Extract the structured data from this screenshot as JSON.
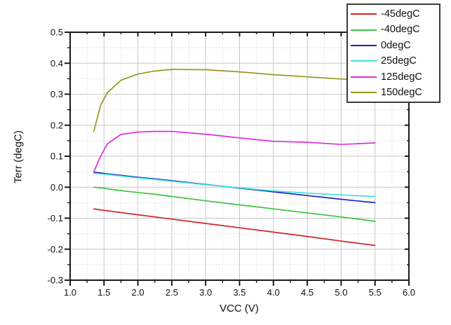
{
  "chart_data": {
    "type": "line",
    "title": "",
    "xlabel": "VCC (V)",
    "ylabel": "Terr (degC)",
    "xlim": [
      1.0,
      6.0
    ],
    "ylim": [
      -0.3,
      0.5
    ],
    "x_tick_labels": [
      "1.0",
      "1.5",
      "2.0",
      "2.5",
      "3.0",
      "3.5",
      "4.0",
      "4.5",
      "5.0",
      "5.5",
      "6.0"
    ],
    "y_tick_labels": [
      "-0.3",
      "-0.2",
      "-0.1",
      "0.0",
      "0.1",
      "0.2",
      "0.3",
      "0.4",
      "0.5"
    ],
    "x_tick_values": [
      1.0,
      1.5,
      2.0,
      2.5,
      3.0,
      3.5,
      4.0,
      4.5,
      5.0,
      5.5,
      6.0
    ],
    "y_tick_values": [
      -0.3,
      -0.2,
      -0.1,
      0.0,
      0.1,
      0.2,
      0.3,
      0.4,
      0.5
    ],
    "x_minor_step": 0.25,
    "y_minor_step": 0.05,
    "grid": {
      "major": "solid",
      "minor": "dotted",
      "major_color": "#c6c6c6",
      "minor_color": "#d9d9d9"
    },
    "axis_color": "#1a1a1a",
    "legend_position": "top-right",
    "x": [
      1.35,
      1.45,
      1.55,
      1.75,
      2.0,
      2.25,
      2.5,
      3.0,
      3.5,
      4.0,
      4.5,
      5.0,
      5.5
    ],
    "series": [
      {
        "name": "-45degC",
        "color": "#cc2626",
        "values": [
          -0.07,
          -0.073,
          -0.076,
          -0.082,
          -0.089,
          -0.096,
          -0.103,
          -0.117,
          -0.131,
          -0.145,
          -0.159,
          -0.174,
          -0.188
        ]
      },
      {
        "name": "-40degC",
        "color": "#3dc63d",
        "values": [
          0.0,
          -0.002,
          -0.005,
          -0.011,
          -0.017,
          -0.023,
          -0.03,
          -0.044,
          -0.057,
          -0.07,
          -0.083,
          -0.096,
          -0.11
        ]
      },
      {
        "name": "0degC",
        "color": "#2121b8",
        "values": [
          0.048,
          0.046,
          0.043,
          0.038,
          0.032,
          0.027,
          0.021,
          0.009,
          -0.003,
          -0.015,
          -0.027,
          -0.039,
          -0.05
        ]
      },
      {
        "name": "25degC",
        "color": "#3be0e0",
        "values": [
          0.045,
          0.043,
          0.041,
          0.036,
          0.03,
          0.025,
          0.019,
          0.008,
          -0.002,
          -0.012,
          -0.019,
          -0.025,
          -0.03
        ]
      },
      {
        "name": "125degC",
        "color": "#dd30dd",
        "values": [
          0.05,
          0.1,
          0.14,
          0.17,
          0.178,
          0.18,
          0.18,
          0.171,
          0.159,
          0.148,
          0.145,
          0.138,
          0.143
        ]
      },
      {
        "name": "150degC",
        "color": "#97971f",
        "values": [
          0.18,
          0.265,
          0.305,
          0.345,
          0.365,
          0.375,
          0.38,
          0.379,
          0.372,
          0.363,
          0.356,
          0.349,
          0.345
        ]
      }
    ]
  }
}
